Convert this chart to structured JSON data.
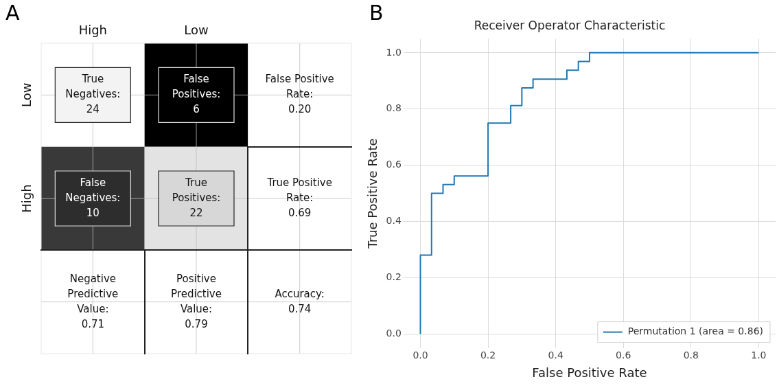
{
  "chart_data": [
    {
      "type": "heatmap",
      "annotations": [
        "A"
      ],
      "categories": [
        "High",
        "Low",
        null
      ],
      "y_categories": [
        "Low",
        "High",
        null
      ],
      "cells": [
        [
          24,
          6,
          0.2
        ],
        [
          10,
          22,
          0.69
        ],
        [
          0.71,
          0.79,
          0.74
        ]
      ],
      "cell_labels": [
        [
          "True\nNegatives:\n24",
          "False\nPositives:\n6",
          "False Positive\nRate:\n0.20"
        ],
        [
          "False\nNegatives:\n10",
          "True\nPositives:\n22",
          "True Positive\nRate:\n0.69"
        ],
        [
          "Negative\nPredictive\nValue:\n0.71",
          "Positive\nPredictive\nValue:\n0.79",
          "Accuracy:\n0.74"
        ]
      ],
      "grid": true
    },
    {
      "type": "step",
      "title": "Receiver Operator Characteristic",
      "xlabel": "False Positive Rate",
      "ylabel": "True Positive Rate",
      "annotations": [
        "B"
      ],
      "x": [
        0,
        0,
        0.033,
        0.067,
        0.1,
        0.2,
        0.267,
        0.3,
        0.333,
        0.433,
        0.467,
        0.5,
        1
      ],
      "series": [
        {
          "name": "Permutation 1 (area = 0.86)",
          "color": "#1f77b4",
          "values": [
            0,
            0.28,
            0.5,
            0.531,
            0.562,
            0.75,
            0.812,
            0.875,
            0.906,
            0.938,
            0.969,
            1,
            1
          ]
        }
      ],
      "xlim": [
        -0.05,
        1.05
      ],
      "ylim": [
        -0.05,
        1.05
      ],
      "xticks": [
        {
          "value": 0,
          "label": "0.0"
        },
        0.2,
        0.4,
        0.6,
        0.8,
        {
          "value": 1,
          "label": "1.0"
        }
      ],
      "yticks": [
        {
          "value": 0,
          "label": "0.0"
        },
        0.2,
        0.4,
        0.6,
        0.8,
        {
          "value": 1,
          "label": "1.0"
        }
      ],
      "grid": true,
      "legend": "bottom right"
    }
  ]
}
